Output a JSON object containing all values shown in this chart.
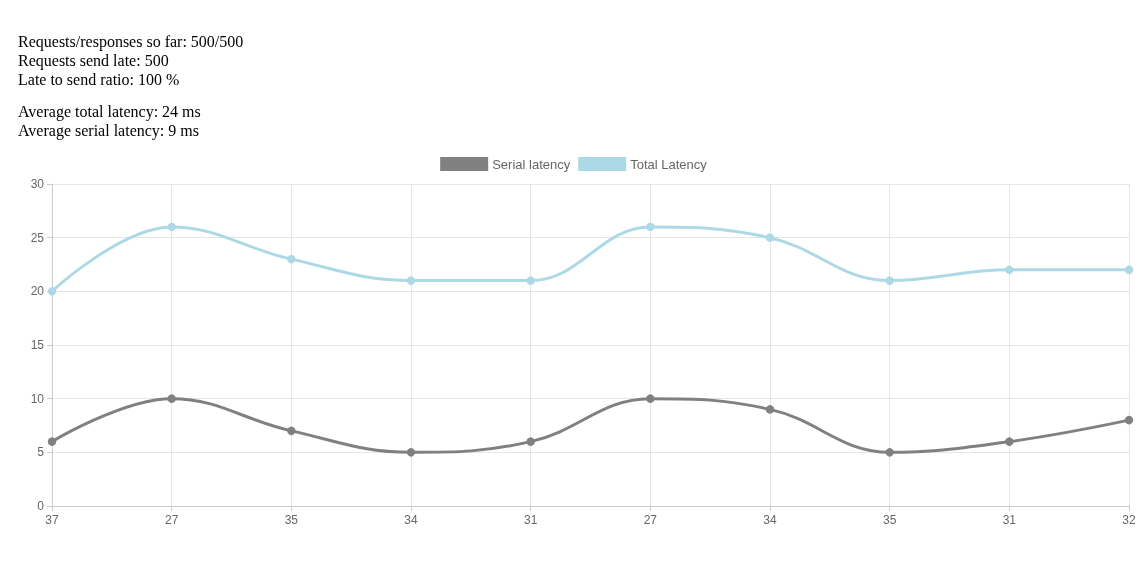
{
  "chart_data": {
    "type": "line",
    "annotations": [
      "Requests/responses so far: 500/500",
      "Requests send late: 500",
      "Late to send ratio: 100 %",
      "Average total latency: 24 ms",
      "Average serial latency: 9 ms"
    ],
    "categories": [
      "37",
      "27",
      "35",
      "34",
      "31",
      "27",
      "34",
      "35",
      "31",
      "32"
    ],
    "series": [
      {
        "name": "Serial latency",
        "color": "#808080",
        "values": [
          6,
          10,
          7,
          5,
          6,
          10,
          9,
          5,
          6,
          8
        ]
      },
      {
        "name": "Total Latency",
        "color": "#add8e6",
        "values": [
          20,
          26,
          23,
          21,
          21,
          26,
          25,
          21,
          22,
          22
        ]
      }
    ],
    "ylim": [
      0,
      30
    ],
    "yticks": [
      0,
      5,
      10,
      15,
      20,
      25,
      30
    ],
    "grid": true,
    "legend": "top",
    "marker": "circle",
    "line_style": "solid"
  }
}
